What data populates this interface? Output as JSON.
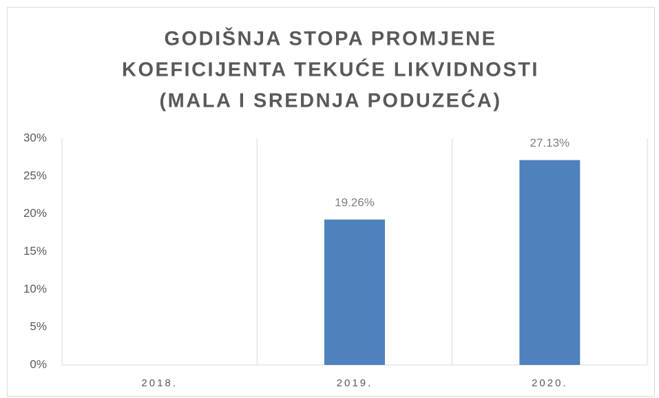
{
  "chart_data": {
    "type": "bar",
    "title": [
      "GODIŠNJA STOPA PROMJENE",
      "KOEFICIJENTA TEKUĆE LIKVIDNOSTI",
      "(MALA I SREDNJA PODUZEĆA)"
    ],
    "categories": [
      "2018.",
      "2019.",
      "2020."
    ],
    "values": [
      null,
      19.26,
      27.13
    ],
    "value_labels": [
      null,
      "19.26%",
      "27.13%"
    ],
    "color": "#4f81bd",
    "ylim": [
      0,
      30
    ],
    "yticks": [
      {
        "value": 0,
        "label": "0%"
      },
      {
        "value": 5,
        "label": "5%"
      },
      {
        "value": 10,
        "label": "10%"
      },
      {
        "value": 15,
        "label": "15%"
      },
      {
        "value": 20,
        "label": "20%"
      },
      {
        "value": 25,
        "label": "25%"
      },
      {
        "value": 30,
        "label": "30%"
      }
    ],
    "grid": true
  }
}
